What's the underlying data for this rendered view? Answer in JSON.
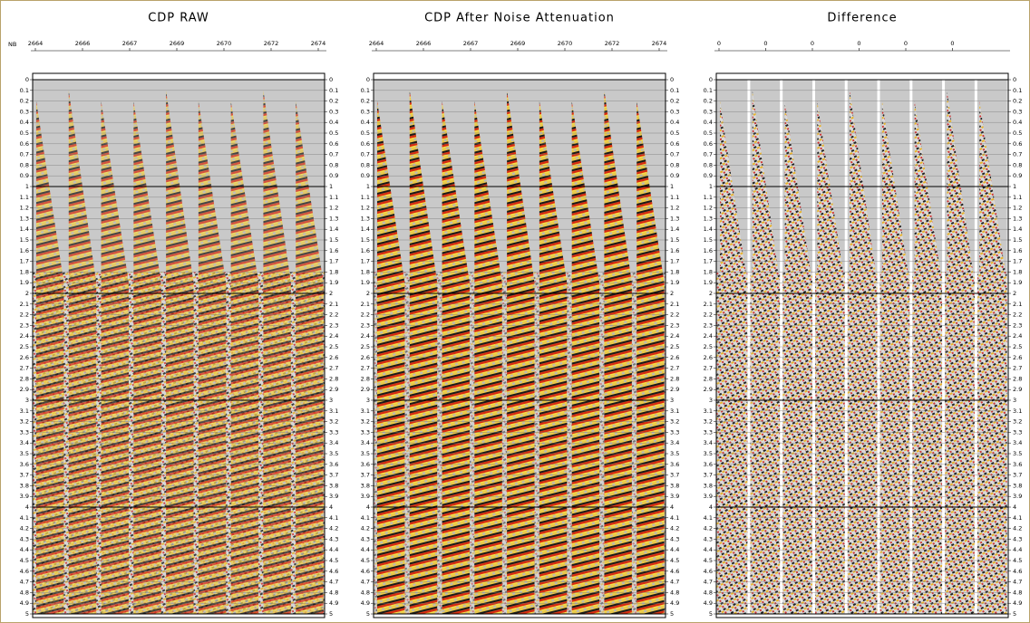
{
  "nb_label": "NB",
  "time_labels": [
    "0",
    "0.1",
    "0.2",
    "0.3",
    "0.4",
    "0.5",
    "0.6",
    "0.7",
    "0.8",
    "0.9",
    "1",
    "1.1",
    "1.2",
    "1.3",
    "1.4",
    "1.5",
    "1.6",
    "1.7",
    "1.8",
    "1.9",
    "2",
    "2.1",
    "2.2",
    "2.3",
    "2.4",
    "2.5",
    "2.6",
    "2.7",
    "2.8",
    "2.9",
    "3",
    "3.1",
    "3.2",
    "3.3",
    "3.4",
    "3.5",
    "3.6",
    "3.7",
    "3.8",
    "3.9",
    "4",
    "4.1",
    "4.2",
    "4.3",
    "4.4",
    "4.5",
    "4.6",
    "4.7",
    "4.8",
    "4.9",
    "5"
  ],
  "panels": [
    {
      "title": "CDP RAW",
      "cdp_labels": [
        "2664",
        "2666",
        "2667",
        "2669",
        "2670",
        "2672",
        "2674"
      ]
    },
    {
      "title": "CDP After Noise Attenuation",
      "cdp_labels": [
        "2664",
        "2666",
        "2667",
        "2669",
        "2670",
        "2672",
        "2674"
      ]
    },
    {
      "title": "Difference",
      "cdp_labels": [
        "0",
        "0",
        "0",
        "0",
        "0",
        "0"
      ]
    }
  ]
}
